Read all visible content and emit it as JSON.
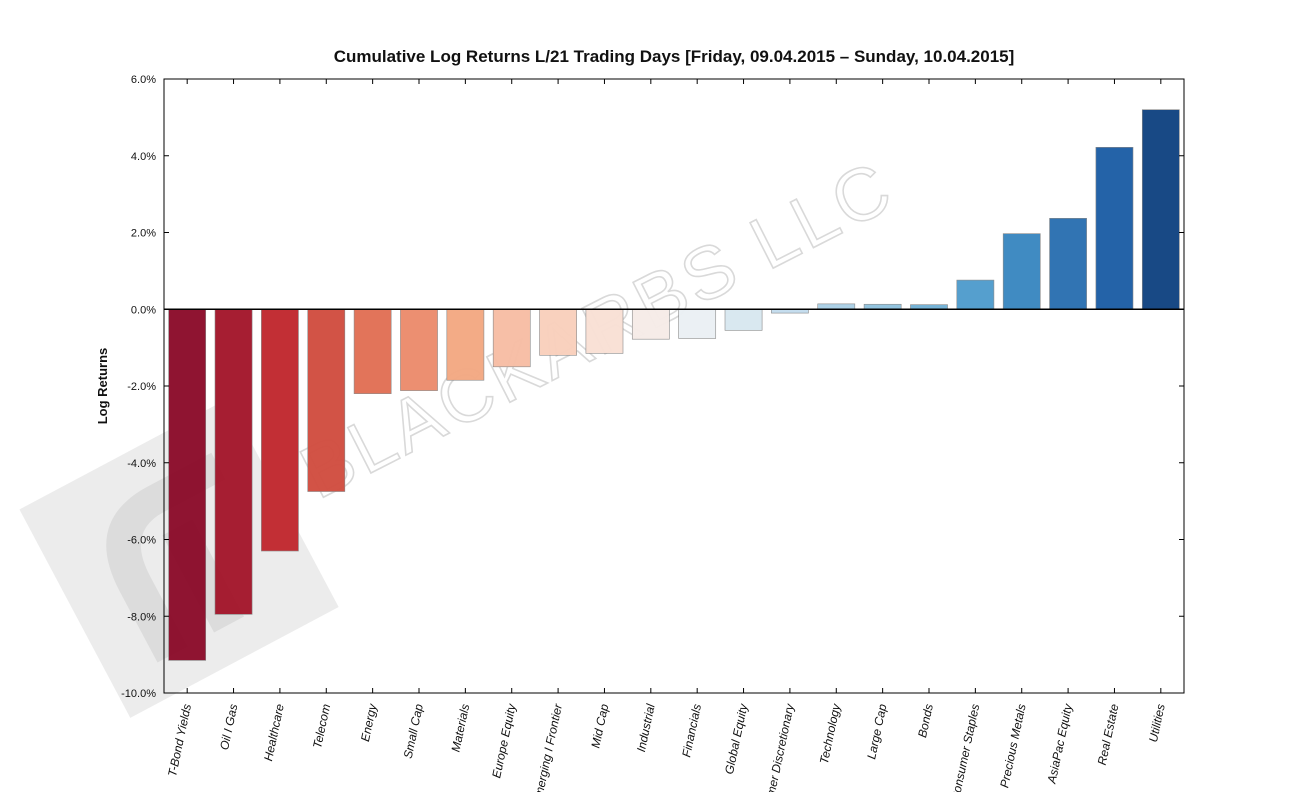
{
  "chart_data": {
    "type": "bar",
    "title": "Cumulative Log Returns L/21 Trading Days  [Friday, 09.04.2015 – Sunday, 10.04.2015]",
    "xlabel": "",
    "ylabel": "Log Returns",
    "ylim": [
      -10.0,
      6.0
    ],
    "yticks": [
      6.0,
      4.0,
      2.0,
      0.0,
      -2.0,
      -4.0,
      -6.0,
      -8.0,
      -10.0
    ],
    "ytick_labels": [
      "6.0%",
      "4.0%",
      "2.0%",
      "0.0%",
      "-2.0%",
      "-4.0%",
      "-6.0%",
      "-8.0%",
      "-10.0%"
    ],
    "value_unit": "%",
    "grid": false,
    "categories": [
      "T-Bond Yields",
      "Oil I Gas",
      "Healthcare",
      "Telecom",
      "Energy",
      "Small Cap",
      "Materials",
      "Europe Equity",
      "Emerging I Frontier",
      "Mid Cap",
      "Industrial",
      "Financials",
      "Global Equity",
      "Consumer Discretionary",
      "Technology",
      "Large Cap",
      "Bonds",
      "Consumer Staples",
      "Precious Metals",
      "AsiaPac Equity",
      "Real Estate",
      "Utilities"
    ],
    "values": [
      -9.15,
      -7.95,
      -6.3,
      -4.75,
      -2.2,
      -2.12,
      -1.85,
      -1.5,
      -1.2,
      -1.15,
      -0.78,
      -0.76,
      -0.55,
      -0.1,
      0.14,
      0.13,
      0.12,
      0.76,
      1.97,
      2.37,
      4.22,
      5.2
    ],
    "colors": [
      "#8b0c2a",
      "#a3172b",
      "#c0282e",
      "#d14d40",
      "#e16f55",
      "#eb8b6c",
      "#f3a882",
      "#f7bda4",
      "#f9d0bc",
      "#f9e0d5",
      "#f6ebe7",
      "#eaf0f4",
      "#d8e7f0",
      "#c3dced",
      "#aacfe5",
      "#8fc2de",
      "#72b1d5",
      "#4f9ccc",
      "#3a87c0",
      "#2a70b1",
      "#1d5ea5",
      "#114381"
    ],
    "colormap": "RdBu"
  },
  "watermark": {
    "text": "BLACKARBS LLC",
    "logo_icon": "blackarbs-logo-icon"
  }
}
